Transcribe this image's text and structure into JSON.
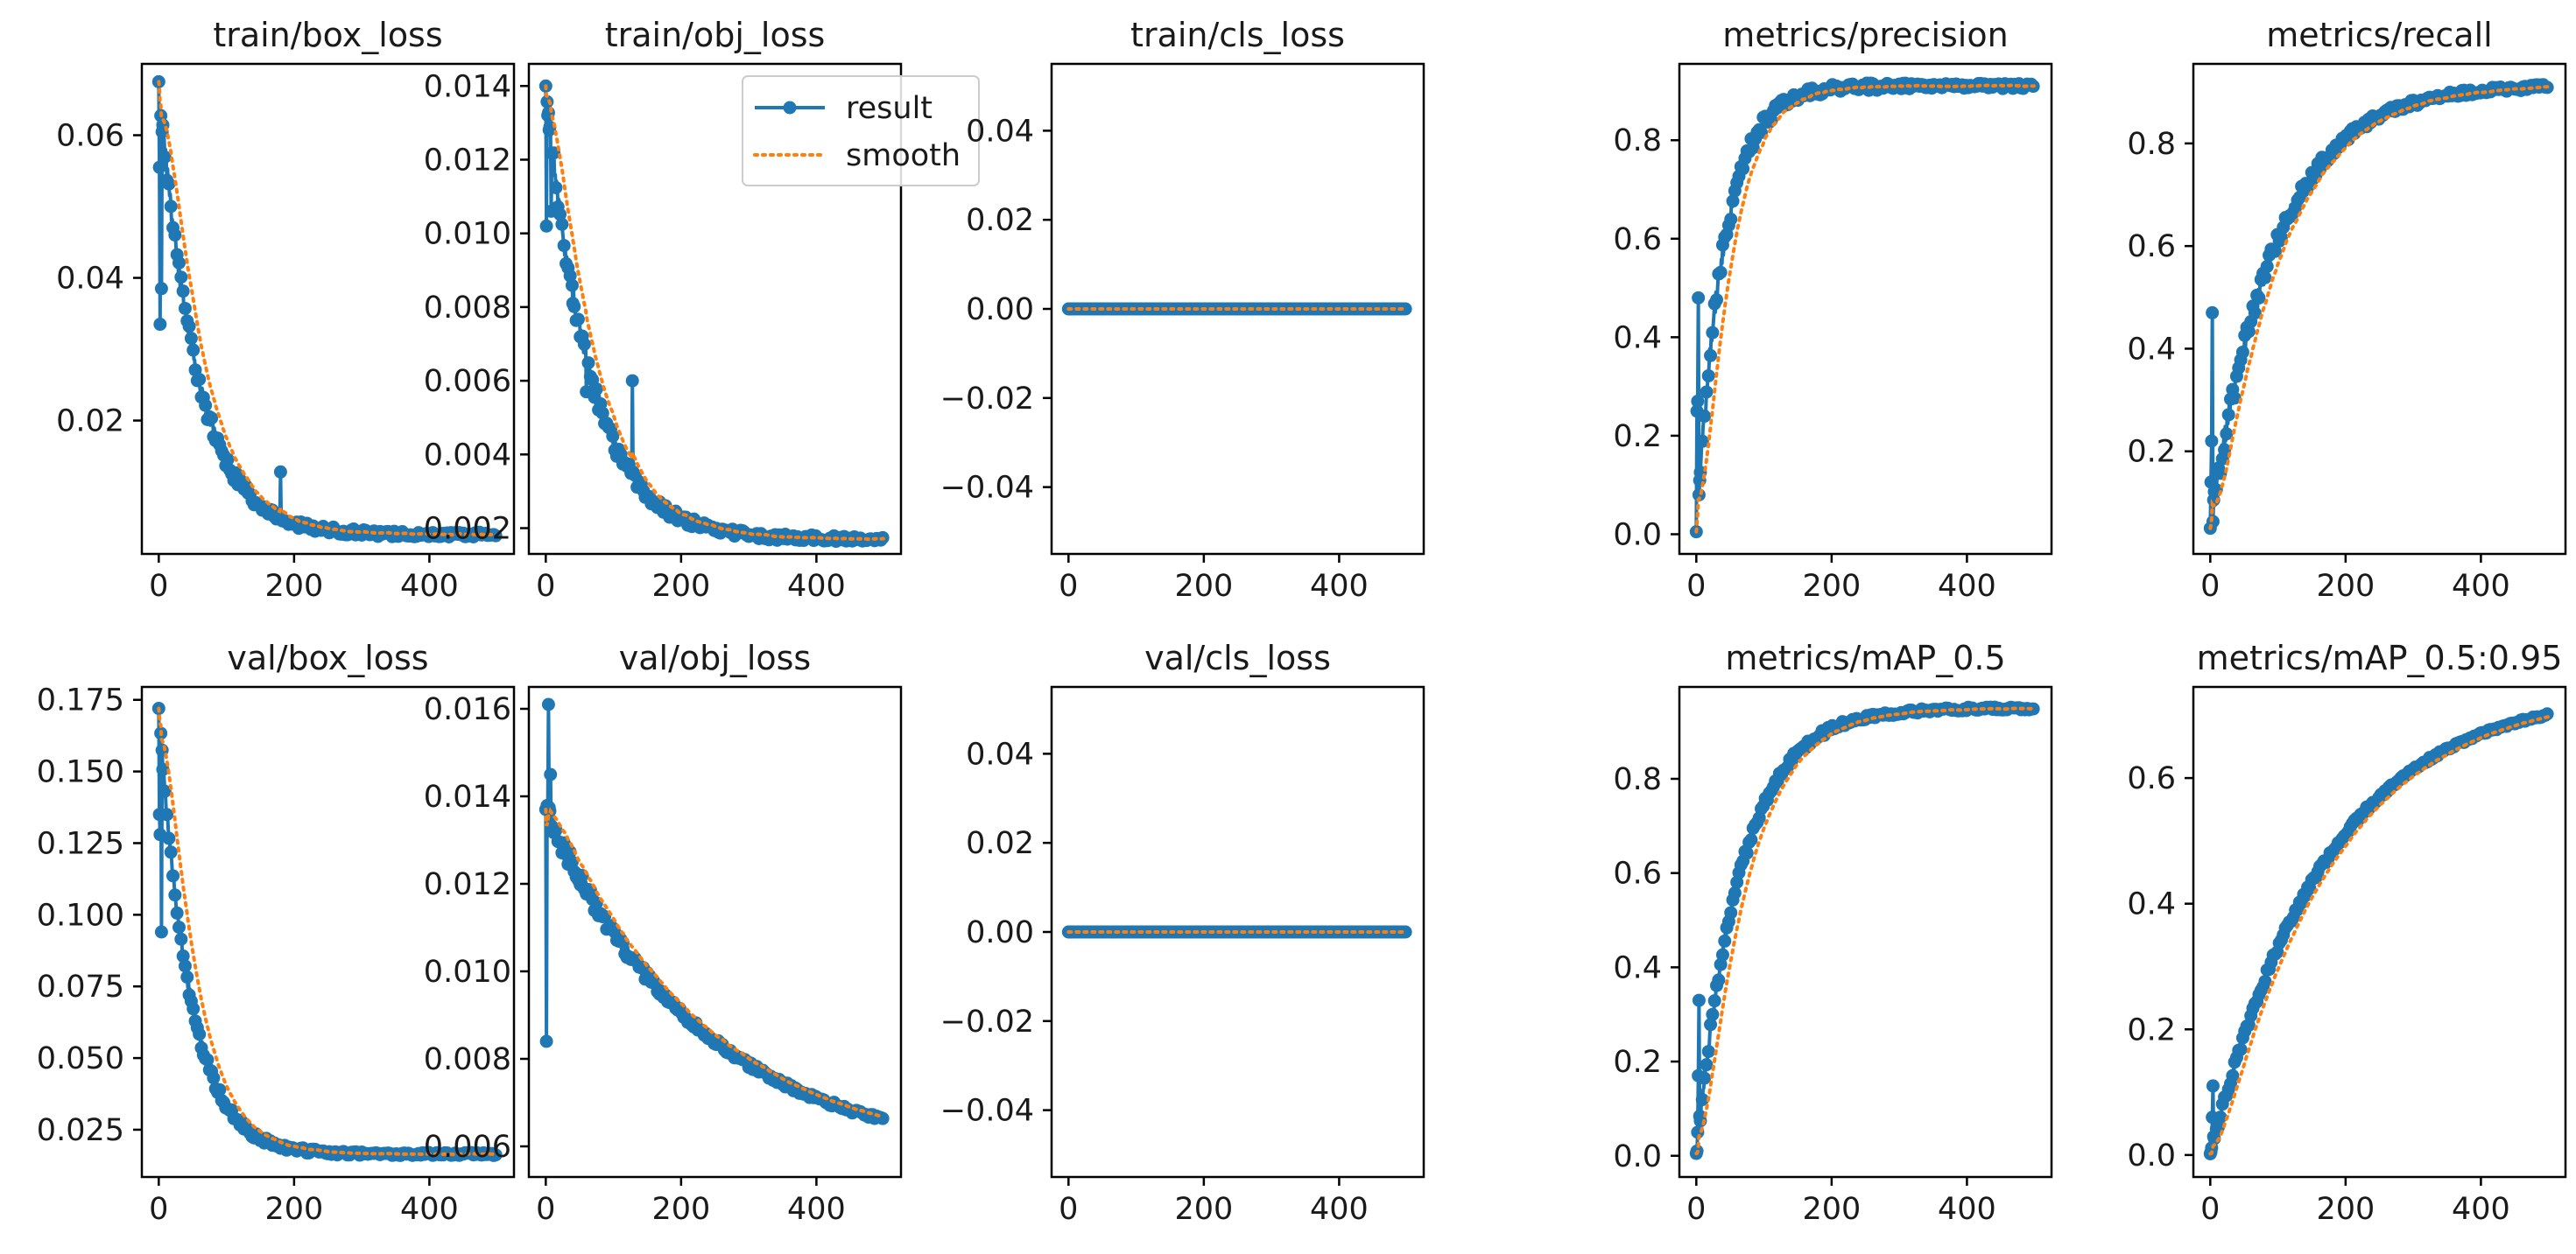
{
  "figure": {
    "legend": {
      "labels": [
        "result",
        "smooth"
      ],
      "placement": "upper-right of train/obj_loss"
    },
    "colors": {
      "result": "#1f77b4",
      "smooth": "#ff7f0e",
      "axis": "#000000",
      "background": "#ffffff"
    }
  },
  "chart_data": [
    {
      "type": "line",
      "title": "train/box_loss",
      "x_ticks": [
        0,
        200,
        400
      ],
      "xlim": [
        -25,
        525
      ],
      "y_ticks": [
        0.02,
        0.04,
        0.06
      ],
      "y_tick_labels": [
        "0.02",
        "0.04",
        "0.06"
      ],
      "ylim": [
        0.0013,
        0.07
      ],
      "start": 0.0675,
      "end": 0.004,
      "tau": 55,
      "noise": 0.0008,
      "spikes": [
        [
          1,
          0.0555
        ],
        [
          4,
          0.0385
        ],
        [
          2,
          0.0335
        ],
        [
          180,
          0.0128
        ]
      ]
    },
    {
      "type": "line",
      "title": "train/obj_loss",
      "x_ticks": [
        0,
        200,
        400
      ],
      "xlim": [
        -25,
        525
      ],
      "y_ticks": [
        0.002,
        0.004,
        0.006,
        0.008,
        0.01,
        0.012,
        0.014
      ],
      "y_tick_labels": [
        "0.002",
        "0.004",
        "0.006",
        "0.008",
        "0.010",
        "0.012",
        "0.014"
      ],
      "ylim": [
        0.0013,
        0.0146
      ],
      "start": 0.014,
      "end": 0.0017,
      "tau": 65,
      "noise": 0.00018,
      "spikes": [
        [
          1,
          0.0102
        ],
        [
          8,
          0.0106
        ],
        [
          40,
          0.0081
        ],
        [
          128,
          0.006
        ],
        [
          60,
          0.0057
        ]
      ],
      "legend": true
    },
    {
      "type": "line",
      "title": "train/cls_loss",
      "x_ticks": [
        0,
        200,
        400
      ],
      "xlim": [
        -25,
        525
      ],
      "y_ticks": [
        -0.04,
        -0.02,
        0.0,
        0.02,
        0.04
      ],
      "y_tick_labels": [
        "−0.04",
        "−0.02",
        "0.00",
        "0.02",
        "0.04"
      ],
      "ylim": [
        -0.055,
        0.055
      ],
      "constant": 0.0
    },
    {
      "type": "line",
      "title": "metrics/precision",
      "x_ticks": [
        0,
        200,
        400
      ],
      "xlim": [
        -25,
        525
      ],
      "y_ticks": [
        0.0,
        0.2,
        0.4,
        0.6,
        0.8
      ],
      "y_tick_labels": [
        "0.0",
        "0.2",
        "0.4",
        "0.6",
        "0.8"
      ],
      "ylim": [
        -0.04,
        0.955
      ],
      "start": 0.005,
      "end": 0.91,
      "tau": 40,
      "noise": 0.012,
      "spikes": [
        [
          1,
          0.25
        ],
        [
          2,
          0.27
        ],
        [
          3,
          0.48
        ]
      ]
    },
    {
      "type": "line",
      "title": "metrics/recall",
      "x_ticks": [
        0,
        200,
        400
      ],
      "xlim": [
        -25,
        525
      ],
      "y_ticks": [
        0.2,
        0.4,
        0.6,
        0.8
      ],
      "y_tick_labels": [
        "0.2",
        "0.4",
        "0.6",
        "0.8"
      ],
      "ylim": [
        0.0,
        0.955
      ],
      "start": 0.05,
      "end": 0.915,
      "tau": 95,
      "noise": 0.012,
      "spikes": [
        [
          1,
          0.14
        ],
        [
          2,
          0.22
        ],
        [
          3,
          0.47
        ]
      ]
    },
    {
      "type": "line",
      "title": "val/box_loss",
      "x_ticks": [
        0,
        200,
        400
      ],
      "xlim": [
        -25,
        525
      ],
      "y_ticks": [
        0.025,
        0.05,
        0.075,
        0.1,
        0.125,
        0.15,
        0.175
      ],
      "y_tick_labels": [
        "0.025",
        "0.050",
        "0.075",
        "0.100",
        "0.125",
        "0.150",
        "0.175"
      ],
      "ylim": [
        0.0085,
        0.1795
      ],
      "start": 0.172,
      "end": 0.0165,
      "tau": 45,
      "noise": 0.0012,
      "spikes": [
        [
          1,
          0.135
        ],
        [
          2,
          0.128
        ],
        [
          4,
          0.094
        ]
      ]
    },
    {
      "type": "line",
      "title": "val/obj_loss",
      "x_ticks": [
        0,
        200,
        400
      ],
      "xlim": [
        -25,
        525
      ],
      "y_ticks": [
        0.006,
        0.008,
        0.01,
        0.012,
        0.014,
        0.016
      ],
      "y_tick_labels": [
        "0.006",
        "0.008",
        "0.010",
        "0.012",
        "0.014",
        "0.016"
      ],
      "ylim": [
        0.0053,
        0.0165
      ],
      "start": 0.0137,
      "end": 0.0057,
      "tau": 230,
      "noise": 0.00012,
      "spikes": [
        [
          1,
          0.0084
        ],
        [
          4,
          0.0161
        ],
        [
          7,
          0.0145
        ]
      ]
    },
    {
      "type": "line",
      "title": "val/cls_loss",
      "x_ticks": [
        0,
        200,
        400
      ],
      "xlim": [
        -25,
        525
      ],
      "y_ticks": [
        -0.04,
        -0.02,
        0.0,
        0.02,
        0.04
      ],
      "y_tick_labels": [
        "−0.04",
        "−0.02",
        "0.00",
        "0.02",
        "0.04"
      ],
      "ylim": [
        -0.055,
        0.055
      ],
      "constant": 0.0
    },
    {
      "type": "line",
      "title": "metrics/mAP_0.5",
      "x_ticks": [
        0,
        200,
        400
      ],
      "xlim": [
        -25,
        525
      ],
      "y_ticks": [
        0.0,
        0.2,
        0.4,
        0.6,
        0.8
      ],
      "y_tick_labels": [
        "0.0",
        "0.2",
        "0.4",
        "0.6",
        "0.8"
      ],
      "ylim": [
        -0.045,
        0.995
      ],
      "start": 0.005,
      "end": 0.95,
      "tau": 65,
      "noise": 0.008,
      "spikes": [
        [
          1,
          0.01
        ],
        [
          2,
          0.05
        ],
        [
          3,
          0.17
        ],
        [
          4,
          0.33
        ]
      ]
    },
    {
      "type": "line",
      "title": "metrics/mAP_0.5:0.95",
      "x_ticks": [
        0,
        200,
        400
      ],
      "xlim": [
        -25,
        525
      ],
      "y_ticks": [
        0.0,
        0.2,
        0.4,
        0.6
      ],
      "y_tick_labels": [
        "0.0",
        "0.2",
        "0.4",
        "0.6"
      ],
      "ylim": [
        -0.035,
        0.745
      ],
      "start": 0.002,
      "end": 0.74,
      "tau": 170,
      "noise": 0.005,
      "spikes": [
        [
          1,
          0.005
        ],
        [
          3,
          0.06
        ],
        [
          4,
          0.11
        ]
      ]
    }
  ]
}
